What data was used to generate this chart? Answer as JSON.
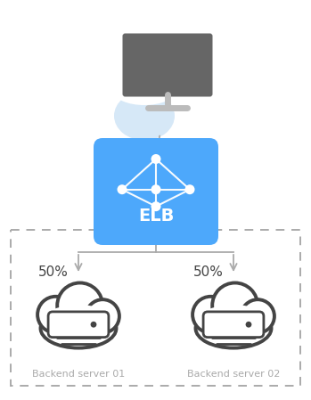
{
  "bg_color": "#ffffff",
  "fig_width": 3.49,
  "fig_height": 4.49,
  "dpi": 100,
  "elb_box_color": "#4da8fb",
  "elb_text": "ELB",
  "elb_text_color": "#ffffff",
  "arrow_color": "#aaaaaa",
  "dashed_box_color": "#aaaaaa",
  "server_label_color": "#aaaaaa",
  "server1_label": "Backend server 01",
  "server2_label": "Backend server 02",
  "pct1": "50%",
  "pct2": "50%",
  "pct_color": "#444444",
  "user_body_color": "#d6e8f7",
  "monitor_color": "#666666",
  "monitor_stand_color": "#bbbbbb",
  "cloud_edge_color": "#444444",
  "cloud_fill_color": "#ffffff"
}
